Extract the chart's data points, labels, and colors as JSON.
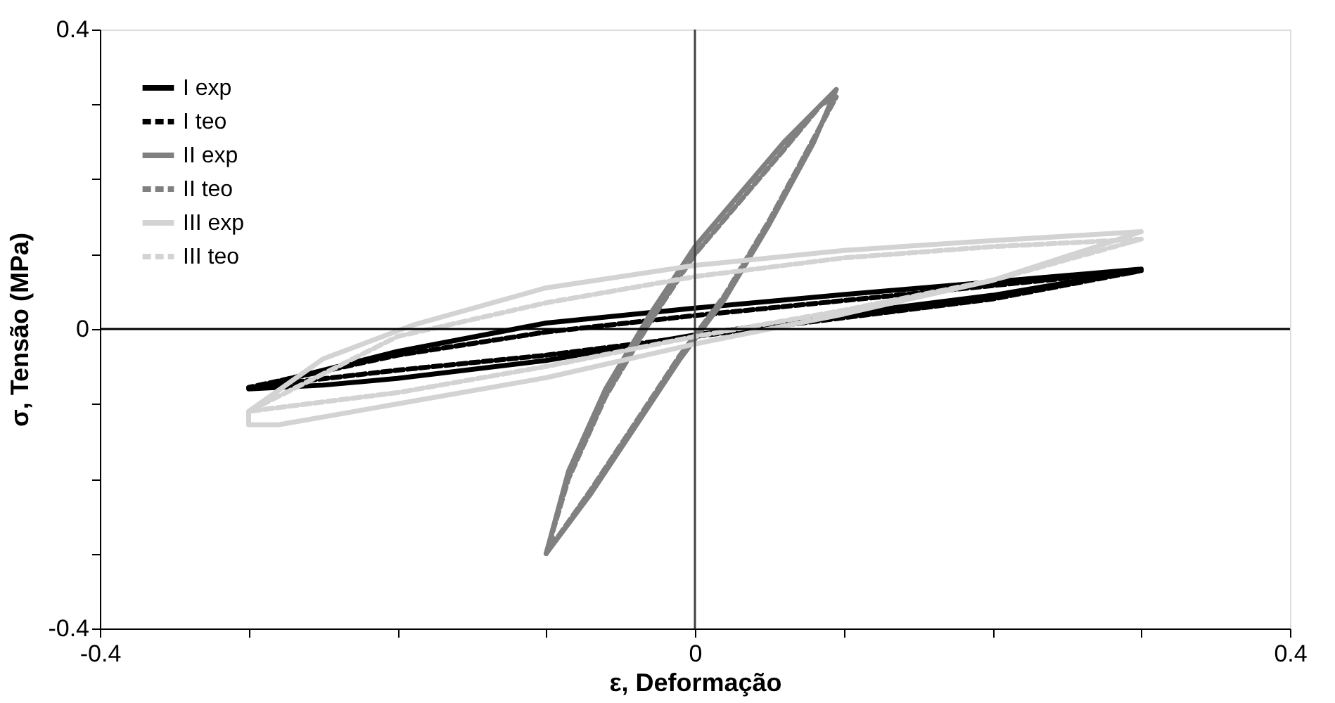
{
  "chart_data": {
    "type": "line",
    "xlabel": "ε, Deformação",
    "ylabel": "σ, Tensão (MPa)",
    "xlim": [
      -0.4,
      0.4
    ],
    "ylim": [
      -0.4,
      0.4
    ],
    "xticks": [
      -0.4,
      {
        "value": -0.3,
        "label": null
      },
      {
        "value": -0.2,
        "label": null
      },
      {
        "value": -0.1,
        "label": null
      },
      0,
      {
        "value": 0.1,
        "label": null
      },
      {
        "value": 0.2,
        "label": null
      },
      {
        "value": 0.3,
        "label": null
      },
      0.4
    ],
    "yticks": [
      -0.4,
      {
        "value": -0.3,
        "label": null
      },
      {
        "value": -0.2,
        "label": null
      },
      {
        "value": -0.1,
        "label": null
      },
      0,
      {
        "value": 0.1,
        "label": null
      },
      {
        "value": 0.2,
        "label": null
      },
      {
        "value": 0.3,
        "label": null
      },
      0.4
    ],
    "grid": false,
    "legend": "top left",
    "marker": "none",
    "ref_lines": [
      {
        "axis": "x",
        "value": 0,
        "color": "#404040"
      },
      {
        "axis": "y",
        "value": 0,
        "color": "#000000"
      }
    ],
    "series": [
      {
        "name": "I exp",
        "color": "#000000",
        "line_style": "solid",
        "x": [
          0.29,
          0.3,
          0.2,
          0.1,
          0,
          -0.1,
          -0.2,
          -0.28,
          -0.3,
          -0.25,
          -0.2,
          -0.1,
          0,
          0.1,
          0.2,
          0.28,
          0.3
        ],
        "values": [
          0.076,
          0.08,
          0.063,
          0.046,
          0.028,
          0.008,
          -0.03,
          -0.07,
          -0.08,
          -0.075,
          -0.066,
          -0.042,
          -0.008,
          0.02,
          0.045,
          0.072,
          0.08
        ]
      },
      {
        "name": "I teo",
        "color": "#000000",
        "line_style": "dashed",
        "x": [
          0.29,
          0.3,
          0.2,
          0.1,
          0,
          -0.1,
          -0.2,
          -0.3,
          -0.2,
          -0.1,
          0,
          0.1,
          0.2,
          0.3
        ],
        "values": [
          0.074,
          0.078,
          0.058,
          0.038,
          0.018,
          -0.004,
          -0.035,
          -0.078,
          -0.055,
          -0.035,
          -0.01,
          0.015,
          0.04,
          0.078
        ]
      },
      {
        "name": "II exp",
        "color": "#808080",
        "line_style": "solid",
        "x": [
          -0.095,
          -0.1,
          -0.07,
          -0.04,
          -0.01,
          0.02,
          0.05,
          0.08,
          0.095,
          0.09,
          0.06,
          0.03,
          0,
          -0.03,
          -0.06,
          -0.085,
          -0.1
        ],
        "values": [
          -0.28,
          -0.3,
          -0.22,
          -0.13,
          -0.04,
          0.04,
          0.14,
          0.25,
          0.32,
          0.31,
          0.25,
          0.18,
          0.11,
          0.02,
          -0.08,
          -0.19,
          -0.3
        ]
      },
      {
        "name": "II teo",
        "color": "#808080",
        "line_style": "dashed",
        "x": [
          -0.095,
          -0.1,
          -0.07,
          -0.04,
          -0.01,
          0.02,
          0.05,
          0.08,
          0.095,
          0.085,
          0.06,
          0.03,
          0,
          -0.03,
          -0.06,
          -0.085,
          -0.1
        ],
        "values": [
          -0.28,
          -0.3,
          -0.215,
          -0.125,
          -0.035,
          0.045,
          0.145,
          0.255,
          0.31,
          0.3,
          0.24,
          0.17,
          0.1,
          0.01,
          -0.09,
          -0.2,
          -0.3
        ]
      },
      {
        "name": "III exp",
        "color": "#d3d3d3",
        "line_style": "solid",
        "x": [
          0.29,
          0.3,
          0.2,
          0.1,
          0,
          -0.1,
          -0.19,
          -0.25,
          -0.3,
          -0.3,
          -0.28,
          -0.2,
          -0.1,
          0,
          0.1,
          0.2,
          0.27,
          0.3
        ],
        "values": [
          0.125,
          0.13,
          0.118,
          0.105,
          0.085,
          0.055,
          0.005,
          -0.04,
          -0.11,
          -0.128,
          -0.128,
          -0.1,
          -0.065,
          -0.02,
          0.02,
          0.065,
          0.11,
          0.13
        ]
      },
      {
        "name": "III teo",
        "color": "#d3d3d3",
        "line_style": "dashed",
        "x": [
          0.29,
          0.3,
          0.2,
          0.1,
          0,
          -0.1,
          -0.2,
          -0.3,
          -0.2,
          -0.1,
          0,
          0.1,
          0.2,
          0.3
        ],
        "values": [
          0.115,
          0.12,
          0.11,
          0.095,
          0.07,
          0.035,
          -0.01,
          -0.11,
          -0.085,
          -0.05,
          -0.01,
          0.025,
          0.065,
          0.12
        ]
      }
    ]
  }
}
